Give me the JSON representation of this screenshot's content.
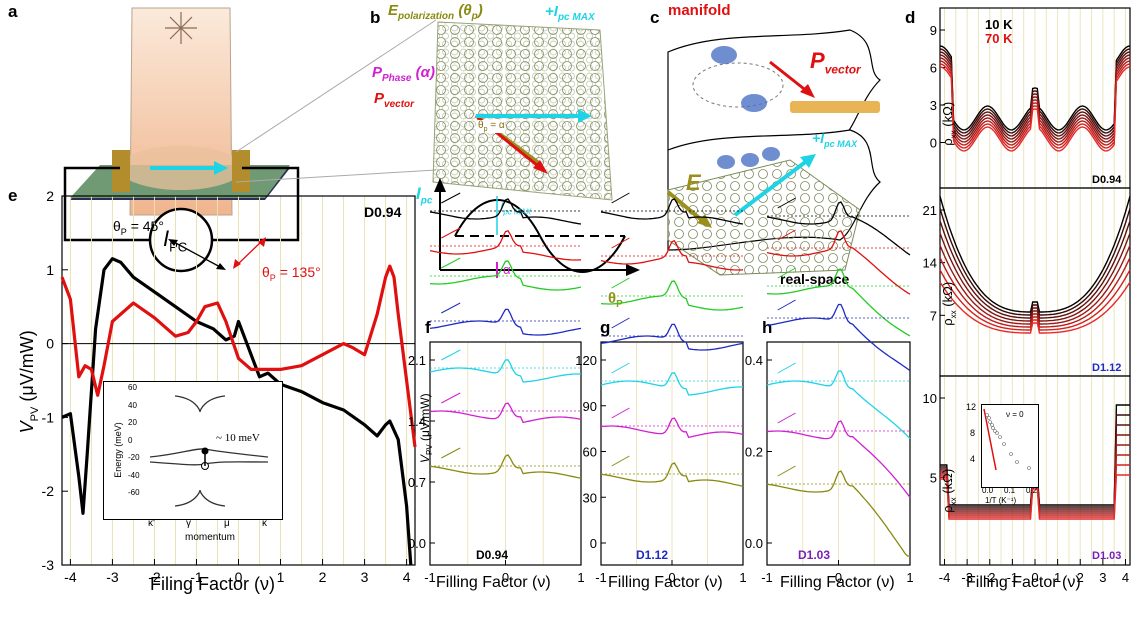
{
  "panels": {
    "a": {
      "letter": "a",
      "current_label": "I",
      "current_sub": "PC"
    },
    "b": {
      "letter": "b",
      "epol_label": "E",
      "epol_sub": "polarization",
      "epol_suffix": "(θ",
      "epol_p": "p",
      "epol_close": ")",
      "ipc_label": "+I",
      "ipc_sub": "pc MAX",
      "pphase_label": "P",
      "pphase_sub": "Phase",
      "pphase_suffix": "(α)",
      "pvector_label": "P",
      "pvector_sub": "vector",
      "theta_eq": "θ",
      "theta_eq_sub": "p",
      "theta_eq_rest": " = α",
      "ipc_axis": "I",
      "ipc_axis_sub": "pc",
      "ipcmax_arrow": "I",
      "ipcmax_arrow_sub": "pc MAX",
      "alpha": "α",
      "theta_axis": "θ",
      "theta_axis_sub": "P"
    },
    "c": {
      "letter": "c",
      "manifold": "manifold",
      "pvector": "P",
      "pvector_sub": "vector",
      "e_label": "E",
      "ipc_label": "+I",
      "ipc_sub": "pc MAX",
      "realspace": "real-space"
    },
    "d": {
      "letter": "d",
      "legend_10k": "10 K",
      "legend_70k": "70 K",
      "ylabel": "ρ",
      "ylabel_sub": "xx",
      "ylabel_unit": " (kΩ)",
      "xlabel": "Filling Factor (ν)",
      "sub1": {
        "device": "D0.94",
        "ticks": [
          "9",
          "6",
          "3",
          "0"
        ],
        "color": "#000000"
      },
      "sub2": {
        "device": "D1.12",
        "ticks": [
          "21",
          "14",
          "7"
        ],
        "color": "#1f2bc2"
      },
      "sub3": {
        "device": "D1.03",
        "ticks": [
          "10",
          "5"
        ],
        "color": "#7a1fb5"
      },
      "xticks": [
        "-4",
        "-3",
        "-2",
        "-1",
        "0",
        "1",
        "2",
        "3",
        "4"
      ],
      "inset": {
        "yticks": [
          "12",
          "8",
          "4"
        ],
        "xticks": [
          "0.0",
          "0.1",
          "0.2"
        ],
        "xlabel": "1/T (K⁻¹)",
        "nu": "ν = 0"
      }
    },
    "e": {
      "letter": "e",
      "device": "D0.94",
      "theta45": "θ",
      "theta45_sub": "P",
      "theta45_rest": " = 45°",
      "theta135": "θ",
      "theta135_sub": "P",
      "theta135_rest": " = 135°",
      "ylabel": "V",
      "ylabel_sub": "PV",
      "ylabel_unit": " (μV/mW)",
      "xlabel": "Filing Factor (ν)",
      "yticks": [
        "2",
        "1",
        "0",
        "-1",
        "-2",
        "-3"
      ],
      "xticks": [
        "-4",
        "-3",
        "-2",
        "-1",
        "0",
        "1",
        "2",
        "3",
        "4"
      ],
      "inset": {
        "ylabel": "Energy (meV)",
        "yticks": [
          "60",
          "40",
          "20",
          "0",
          "-20",
          "-40",
          "-60"
        ],
        "xticks": [
          "κ'",
          "γ",
          "μ",
          "κ"
        ],
        "xlabel": "momentum",
        "gap": "~ 10 meV"
      }
    },
    "f": {
      "letter": "f",
      "device": "D0.94",
      "yticks": [
        "2.1",
        "1.4",
        "0.7",
        "0.0"
      ],
      "xticks": [
        "-1",
        "0",
        "1"
      ],
      "xlabel": "Filling Factor (ν)",
      "ylabel": "V",
      "ylabel_sub": "PV",
      "ylabel_unit": " (μV/mW)"
    },
    "g": {
      "letter": "g",
      "device": "D1.12",
      "yticks": [
        "120",
        "90",
        "60",
        "30",
        "0"
      ],
      "xticks": [
        "-1",
        "0",
        "1"
      ],
      "xlabel": "Filling Factor (ν)"
    },
    "h": {
      "letter": "h",
      "device": "D1.03",
      "yticks": [
        "0.4",
        "0.2",
        "0.0"
      ],
      "xticks": [
        "-1",
        "0",
        "1"
      ],
      "xlabel": "Filling Factor (ν)"
    }
  },
  "chart_data": [
    {
      "type": "line",
      "panel": "e",
      "ylim": [
        -3,
        2
      ],
      "xlim": [
        -4.2,
        4.2
      ],
      "series": [
        {
          "name": "θP = 45°",
          "color": "#000000",
          "x": [
            -4.2,
            -4.0,
            -3.8,
            -3.7,
            -3.6,
            -3.4,
            -3.2,
            -3.0,
            -2.8,
            -2.5,
            -2.0,
            -1.5,
            -1.0,
            -0.6,
            -0.3,
            -0.1,
            0.0,
            0.2,
            0.5,
            0.7,
            1.0,
            1.5,
            2.0,
            2.5,
            3.0,
            3.3,
            3.5,
            3.6,
            3.8,
            4.0,
            4.1
          ],
          "y": [
            -1.0,
            -0.95,
            -1.8,
            -2.3,
            -1.5,
            0.2,
            1.0,
            1.15,
            1.1,
            0.9,
            0.7,
            0.5,
            0.3,
            0.2,
            0.05,
            0.1,
            0.3,
            0.0,
            -0.45,
            -0.4,
            -0.55,
            -0.65,
            -0.8,
            -0.9,
            -1.1,
            -1.25,
            -1.1,
            -1.05,
            -1.3,
            -2.2,
            -3.0
          ]
        },
        {
          "name": "θP = 135°",
          "color": "#e01010",
          "x": [
            -4.2,
            -4.0,
            -3.8,
            -3.65,
            -3.5,
            -3.35,
            -3.2,
            -3.0,
            -2.5,
            -2.0,
            -1.5,
            -1.2,
            -1.0,
            -0.8,
            -0.5,
            -0.3,
            0.0,
            0.3,
            0.7,
            1.0,
            1.5,
            2.0,
            2.5,
            2.7,
            3.0,
            3.3,
            3.5,
            3.6,
            3.7,
            3.8,
            4.0,
            4.2
          ],
          "y": [
            0.9,
            0.6,
            -0.45,
            -0.3,
            -0.35,
            -0.7,
            -0.3,
            0.3,
            0.55,
            0.35,
            0.1,
            0.15,
            0.3,
            0.5,
            0.55,
            0.3,
            -0.2,
            -0.35,
            -0.35,
            -0.35,
            -0.3,
            -0.15,
            0.0,
            -0.05,
            -0.15,
            0.4,
            0.9,
            1.05,
            0.9,
            0.4,
            -0.5,
            -1.4
          ]
        }
      ]
    }
  ]
}
